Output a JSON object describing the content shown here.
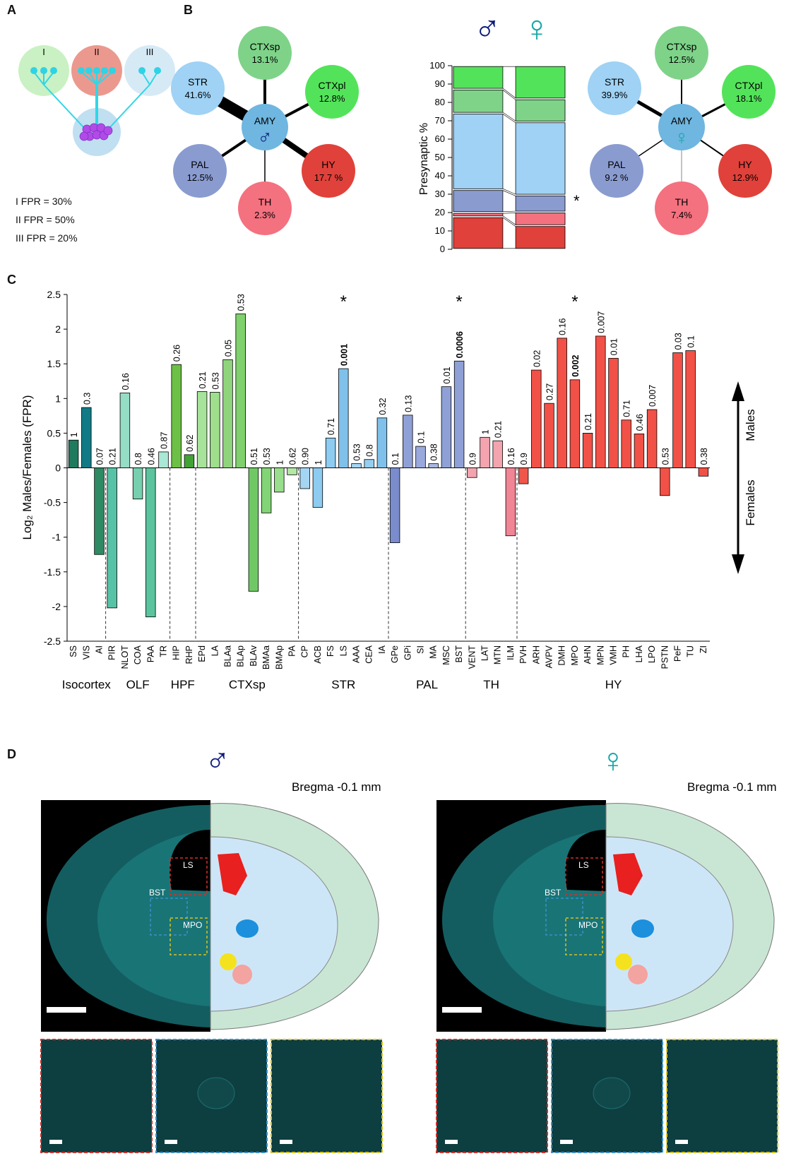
{
  "panels": {
    "a": "A",
    "b": "B",
    "c": "C",
    "d": "D"
  },
  "panel_a": {
    "groups": [
      {
        "label": "I",
        "color": "#bfeeb8"
      },
      {
        "label": "II",
        "color": "#e8877a"
      },
      {
        "label": "III",
        "color": "#cfe6f5"
      }
    ],
    "fpr": [
      "I FPR = 30%",
      "II FPR = 50%",
      "III FPR = 20%"
    ]
  },
  "panel_b": {
    "male_symbol": "♂",
    "female_symbol": "♀",
    "male_color": "#0b1a7a",
    "female_color": "#1aa6a6",
    "center_label": "AMY",
    "male": [
      {
        "name": "CTXsp",
        "pct": "13.1%",
        "color": "#7ed389"
      },
      {
        "name": "STR",
        "pct": "41.6%",
        "color": "#9fd2f4"
      },
      {
        "name": "CTXpl",
        "pct": "12.8%",
        "color": "#53e35a"
      },
      {
        "name": "PAL",
        "pct": "12.5%",
        "color": "#8a9bd0"
      },
      {
        "name": "HY",
        "pct": "17.7 %",
        "color": "#e0413a"
      },
      {
        "name": "TH",
        "pct": "2.3%",
        "color": "#f4717f"
      }
    ],
    "female": [
      {
        "name": "CTXsp",
        "pct": "12.5%",
        "color": "#7ed389"
      },
      {
        "name": "STR",
        "pct": "39.9%",
        "color": "#9fd2f4"
      },
      {
        "name": "CTXpl",
        "pct": "18.1%",
        "color": "#53e35a"
      },
      {
        "name": "PAL",
        "pct": "9.2 %",
        "color": "#8a9bd0"
      },
      {
        "name": "HY",
        "pct": "12.9%",
        "color": "#e0413a"
      },
      {
        "name": "TH",
        "pct": "7.4%",
        "color": "#f4717f"
      }
    ],
    "stack_axis_label": "Presynaptic %",
    "stack_ticks": [
      "0",
      "10",
      "20",
      "30",
      "40",
      "50",
      "60",
      "70",
      "80",
      "90",
      "100"
    ],
    "star": "*"
  },
  "chart_data": {
    "type": "bar",
    "ylabel": "Log₂ Males/Females (FPR)",
    "ylim": [
      -2.5,
      2.5
    ],
    "yticks": [
      "2.5",
      "2",
      "1.5",
      "1",
      "0.5",
      "0",
      "-0.5",
      "-1",
      "-1.5",
      "-2",
      "-2.5"
    ],
    "males_label": "Males",
    "females_label": "Females",
    "star": "*",
    "categories": [
      "SS",
      "VIS",
      "AI",
      "PIR",
      "NLOT",
      "COA",
      "PAA",
      "TR",
      "HIP",
      "RHP",
      "EPd",
      "LA",
      "BLAa",
      "BLAp",
      "BLAv",
      "BMAa",
      "BMAp",
      "PA",
      "CP",
      "ACB",
      "FS",
      "LS",
      "AAA",
      "CEA",
      "IA",
      "GPe",
      "GPi",
      "SI",
      "MA",
      "MSC",
      "BST",
      "VENT",
      "LAT",
      "MTN",
      "ILM",
      "PVH",
      "ARH",
      "AVPV",
      "DMH",
      "MPO",
      "AHN",
      "MPN",
      "VMH",
      "PH",
      "LHA",
      "LPO",
      "PSTN",
      "PeF",
      "TU",
      "ZI"
    ],
    "values": [
      0.4,
      0.87,
      -1.25,
      -2.02,
      1.08,
      -0.45,
      -2.15,
      0.23,
      1.49,
      0.19,
      1.1,
      1.09,
      1.56,
      2.22,
      -1.78,
      -0.65,
      -0.35,
      -0.1,
      -0.3,
      -0.57,
      0.43,
      1.43,
      0.06,
      0.12,
      0.72,
      -1.08,
      0.76,
      0.31,
      0.06,
      1.17,
      1.54,
      -0.14,
      0.44,
      0.39,
      -0.98,
      -0.23,
      1.41,
      0.93,
      1.87,
      1.27,
      0.5,
      1.9,
      1.58,
      0.69,
      0.49,
      0.84,
      -0.4,
      1.66,
      1.69,
      -0.12
    ],
    "pvalues": [
      "1",
      "0.3",
      "0.07",
      "0.21",
      "0.16",
      "0.8",
      "0.46",
      "0.87",
      "0.26",
      "0.62",
      "0.21",
      "0.53",
      "0.05",
      "0.53",
      "0.51",
      "0.53",
      "1",
      "0.62",
      "0.90",
      "1",
      "0.71",
      "0.001",
      "0.53",
      "0.8",
      "0.32",
      "0.1",
      "0.13",
      "0.1",
      "0.38",
      "0.01",
      "0.0006",
      "0.9",
      "1",
      "0.21",
      "0.16",
      "0.9",
      "0.02",
      "0.27",
      "0.16",
      "0.002",
      "0.21",
      "0.007",
      "0.01",
      "0.71",
      "0.46",
      "0.007",
      "0.53",
      "0.03",
      "0.1",
      "0.38"
    ],
    "bold_pvalues": [
      "LS",
      "BST",
      "MPO"
    ],
    "starred": [
      "LS",
      "BST",
      "MPO"
    ],
    "colors": [
      "#1f7a5e",
      "#127a84",
      "#2e8a63",
      "#58c2a6",
      "#96ddc6",
      "#76cfae",
      "#5bc39e",
      "#a8e8d4",
      "#6cc046",
      "#42a236",
      "#a7e39a",
      "#9fde8c",
      "#8fd47d",
      "#80d06e",
      "#70c865",
      "#82d476",
      "#99de8c",
      "#b3e8a6",
      "#a4d6f3",
      "#8ecbf0",
      "#8ecbf0",
      "#7fc1ea",
      "#a4d6f3",
      "#94cff1",
      "#7fc1ea",
      "#7a8ccb",
      "#8fa0d6",
      "#9aa9dc",
      "#aab7e1",
      "#8fa0d6",
      "#8fa0d6",
      "#f3a4ae",
      "#f3a4ae",
      "#f3a4ae",
      "#f08596",
      "#f0564a",
      "#f25147",
      "#f25147",
      "#f25147",
      "#f25147",
      "#f25147",
      "#f25147",
      "#f25147",
      "#f25147",
      "#f25147",
      "#f25147",
      "#f25147",
      "#f25147",
      "#f25147",
      "#f25147"
    ],
    "groups": [
      {
        "name": "Isocortex",
        "start": 0,
        "end": 2
      },
      {
        "name": "OLF",
        "start": 3,
        "end": 7
      },
      {
        "name": "HPF",
        "start": 8,
        "end": 9
      },
      {
        "name": "CTXsp",
        "start": 10,
        "end": 17
      },
      {
        "name": "STR",
        "start": 18,
        "end": 24
      },
      {
        "name": "PAL",
        "start": 25,
        "end": 30
      },
      {
        "name": "TH",
        "start": 31,
        "end": 34
      },
      {
        "name": "HY",
        "start": 35,
        "end": 49
      }
    ],
    "separators_after": [
      2,
      7,
      9,
      17,
      24,
      30,
      34
    ]
  },
  "panel_d": {
    "male_symbol": "♂",
    "female_symbol": "♀",
    "male_title": "Bregma -0.1 mm",
    "female_title": "Bregma -0.1 mm",
    "roi_labels": [
      "LS",
      "BST",
      "MPO"
    ]
  }
}
